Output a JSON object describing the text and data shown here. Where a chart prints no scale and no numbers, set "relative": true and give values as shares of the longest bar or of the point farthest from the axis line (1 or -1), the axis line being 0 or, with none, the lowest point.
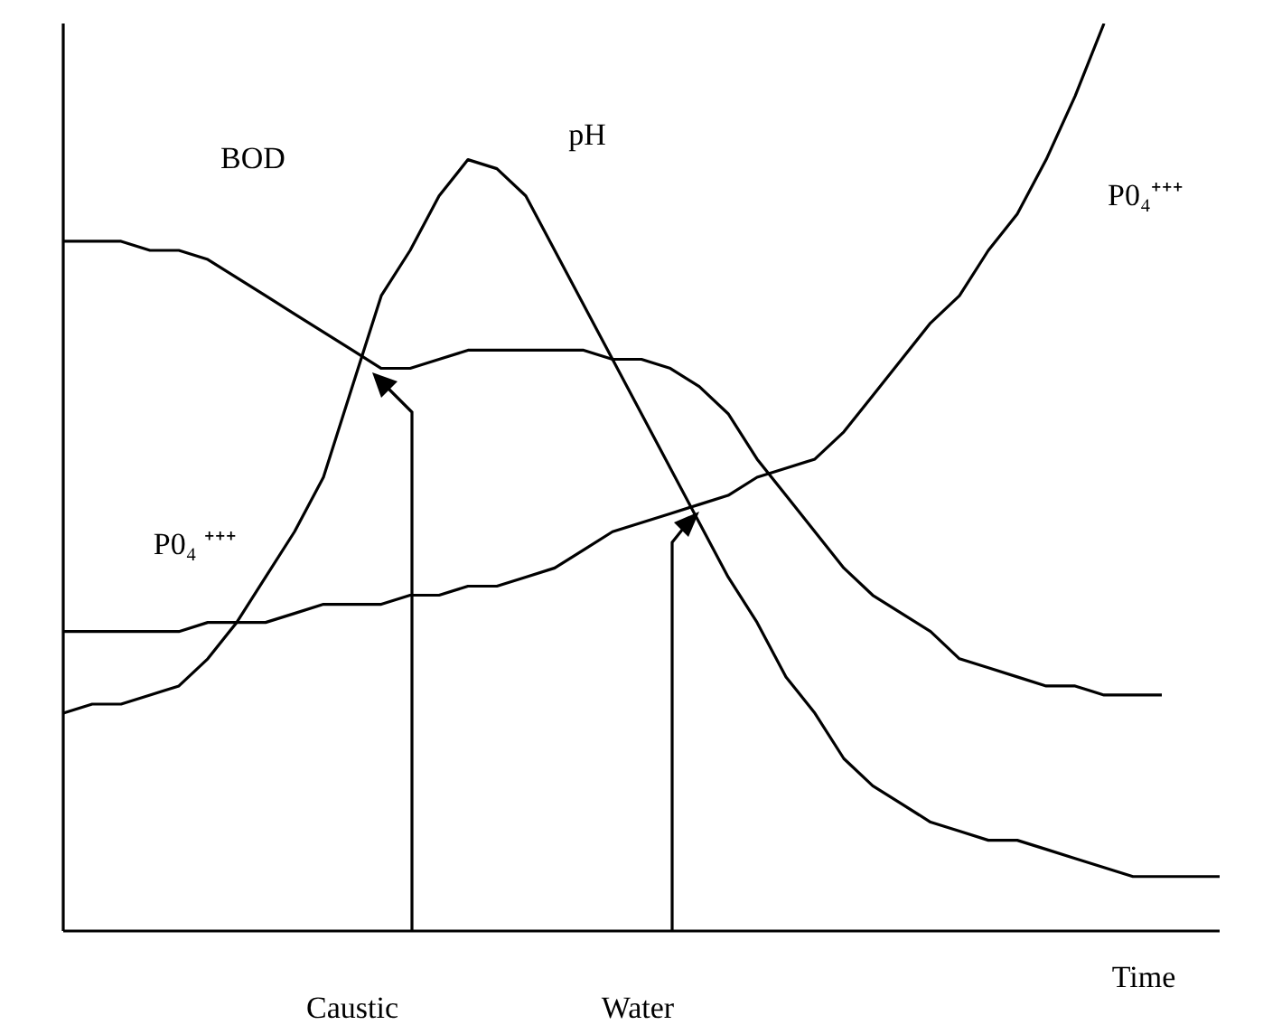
{
  "chart_data": {
    "type": "line",
    "relative": true,
    "xlabel": "Time",
    "legend": false,
    "marker": "none",
    "line_style": "solid",
    "categories": [
      null,
      null,
      null,
      null,
      null,
      null,
      null,
      null,
      null,
      null,
      null,
      null,
      null,
      null,
      null,
      null,
      null,
      null,
      null,
      null,
      null,
      null,
      null,
      null,
      null,
      null,
      null,
      null,
      null,
      null,
      null,
      null,
      null,
      null,
      null,
      null,
      null,
      null,
      null,
      null,
      null
    ],
    "series": [
      {
        "name": "BOD",
        "color": "#000000",
        "values": [
          0.76,
          0.76,
          0.76,
          0.75,
          0.75,
          0.74,
          0.72,
          0.7,
          0.68,
          0.66,
          0.64,
          0.62,
          0.62,
          0.63,
          0.64,
          0.64,
          0.64,
          0.64,
          0.64,
          0.63,
          0.63,
          0.62,
          0.6,
          0.57,
          0.52,
          0.48,
          0.44,
          0.4,
          0.37,
          0.35,
          0.33,
          0.3,
          0.29,
          0.28,
          0.27,
          0.27,
          0.26,
          0.26,
          0.26,
          null,
          null
        ]
      },
      {
        "name": "pH",
        "color": "#000000",
        "values": [
          0.24,
          0.25,
          0.25,
          0.26,
          0.27,
          0.3,
          0.34,
          0.39,
          0.44,
          0.5,
          0.6,
          0.7,
          0.75,
          0.81,
          0.85,
          0.84,
          0.81,
          0.75,
          0.69,
          0.63,
          0.57,
          0.51,
          0.45,
          0.39,
          0.34,
          0.28,
          0.24,
          0.19,
          0.16,
          0.14,
          0.12,
          0.11,
          0.1,
          0.1,
          0.09,
          0.08,
          0.07,
          0.06,
          0.06,
          0.06,
          0.06
        ]
      },
      {
        "name": "P0₄⁺⁺⁺",
        "color": "#000000",
        "values": [
          0.33,
          0.33,
          0.33,
          0.33,
          0.33,
          0.34,
          0.34,
          0.34,
          0.35,
          0.36,
          0.36,
          0.36,
          0.37,
          0.37,
          0.38,
          0.38,
          0.39,
          0.4,
          0.42,
          0.44,
          0.45,
          0.46,
          0.47,
          0.48,
          0.5,
          0.51,
          0.52,
          0.55,
          0.59,
          0.63,
          0.67,
          0.7,
          0.75,
          0.79,
          0.85,
          0.92,
          1,
          null,
          null,
          null,
          null
        ]
      }
    ],
    "annotations": [
      "P0₄ ⁺⁺⁺",
      "Caustic",
      "Water"
    ]
  }
}
